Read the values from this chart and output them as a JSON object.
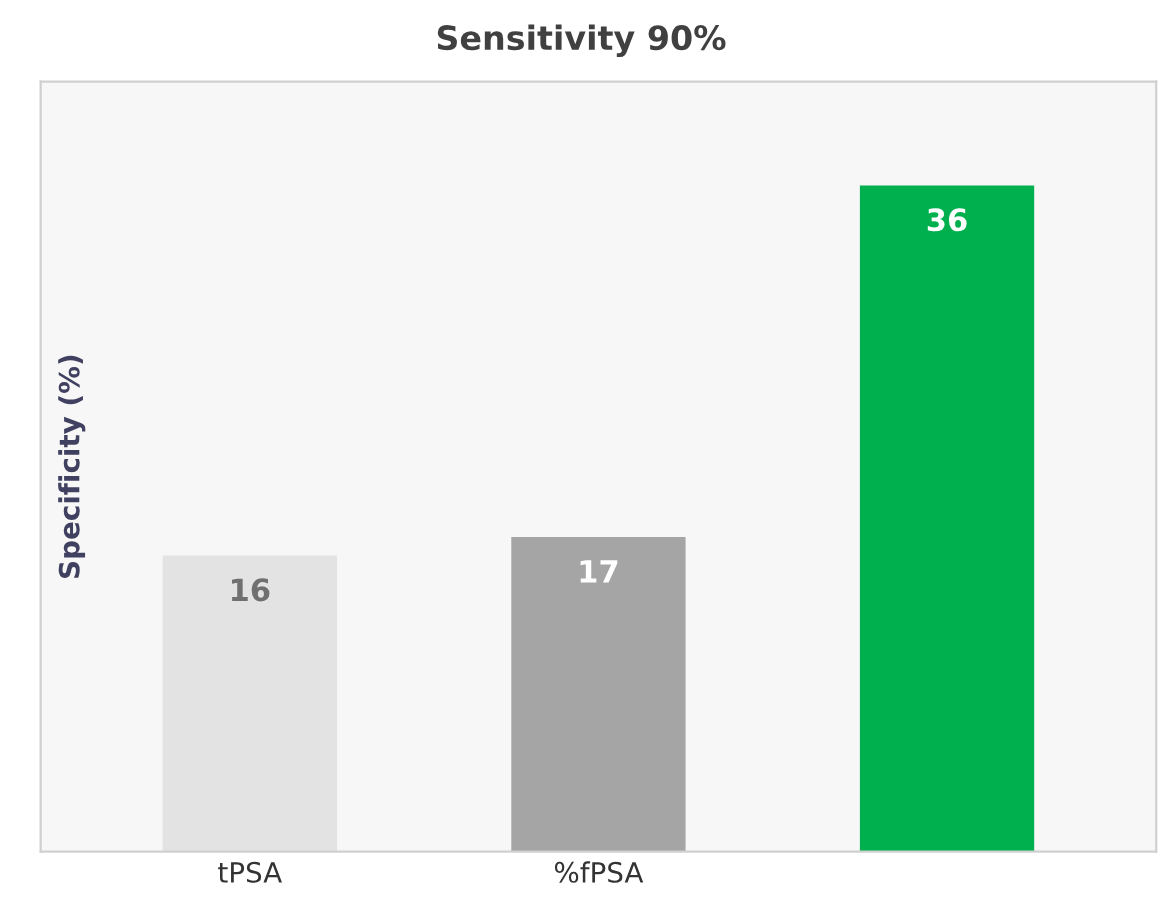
{
  "chart_data": {
    "type": "bar",
    "title": "Sensitivity 90%",
    "ylabel": "Specificity (%)",
    "categories": [
      "tPSA",
      "%fPSA",
      null
    ],
    "values": [
      16,
      17,
      36
    ],
    "colors": [
      "#e3e3e3",
      "#a5a5a5",
      "#00b04f"
    ],
    "data_labels": true,
    "tick_labels": "x",
    "grid": false,
    "legend": false
  }
}
